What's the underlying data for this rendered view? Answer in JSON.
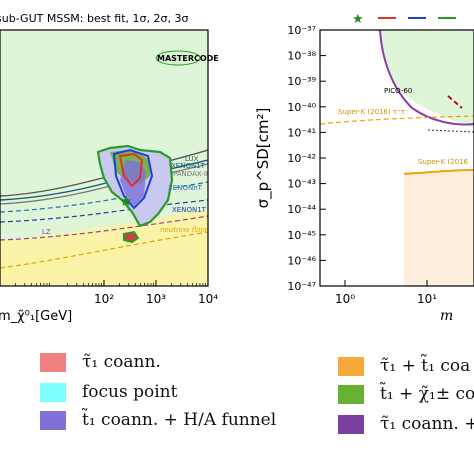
{
  "chart_data": [
    {
      "type": "area",
      "title": "sub-GUT MSSM: best fit, 1σ, 2σ, 3σ",
      "xlabel": "m_χ̃⁰₁[GeV]",
      "xscale": "log",
      "xlim": [
        1,
        10000
      ],
      "x_ticks": [
        "10²",
        "10³",
        "10⁴"
      ],
      "logo": "MASTERCODE",
      "curves": [
        {
          "name": "LUX",
          "color": "#555555",
          "style": "solid"
        },
        {
          "name": "XENON1T",
          "color": "#1a5a7a",
          "style": "solid"
        },
        {
          "name": "PANDAX-II",
          "color": "#777777",
          "style": "solid"
        },
        {
          "name": "XENONnT",
          "color": "#2a6fb0",
          "style": "dashed"
        },
        {
          "name": "XENON1T",
          "color": "#2a3f9a",
          "style": "dashed"
        },
        {
          "name": "LZ",
          "color": "#8a4aa0",
          "style": "dashed"
        },
        {
          "name": "neutrino floor",
          "color": "#e0a800",
          "style": "dashed"
        }
      ],
      "best_fit_marker": "★"
    },
    {
      "type": "area",
      "ylabel": "σ_p^SD[cm²]",
      "yscale": "log",
      "ylim_exp": [
        -47,
        -37
      ],
      "y_ticks": [
        "10⁻³⁷",
        "10⁻³⁸",
        "10⁻³⁹",
        "10⁻⁴⁰",
        "10⁻⁴¹",
        "10⁻⁴²",
        "10⁻⁴³",
        "10⁻⁴⁴",
        "10⁻⁴⁵",
        "10⁻⁴⁶",
        "10⁻⁴⁷"
      ],
      "x_ticks": [
        "10⁰",
        "10¹"
      ],
      "xlabel_partial": "m",
      "labels": [
        "PICO-60",
        "Super-K (2016) τ⁺τ⁻",
        "Super-K (2016"
      ],
      "top_legend_marker": "★"
    }
  ],
  "legend": [
    {
      "label": "τ̃₁ coann.",
      "color": "#f08080"
    },
    {
      "label": "focus point",
      "color": "#7fffff"
    },
    {
      "label": "t̃₁ coann. + H/A funnel",
      "color": "#8070d8"
    },
    {
      "label": "τ̃₁ + t̃₁ coa",
      "color": "#f7a93a"
    },
    {
      "label": "t̃₁ + χ̃₁± co",
      "color": "#66b032"
    },
    {
      "label": "τ̃₁ coann. +",
      "color": "#7a3fa0"
    }
  ],
  "colors": {
    "excluded_green": "#dff5d8",
    "neutrino_yellow": "#fbf3a8",
    "superk_fill": "#fdeedd",
    "pico_line": "#8a3fa6",
    "superk_line": "#f0a500"
  }
}
